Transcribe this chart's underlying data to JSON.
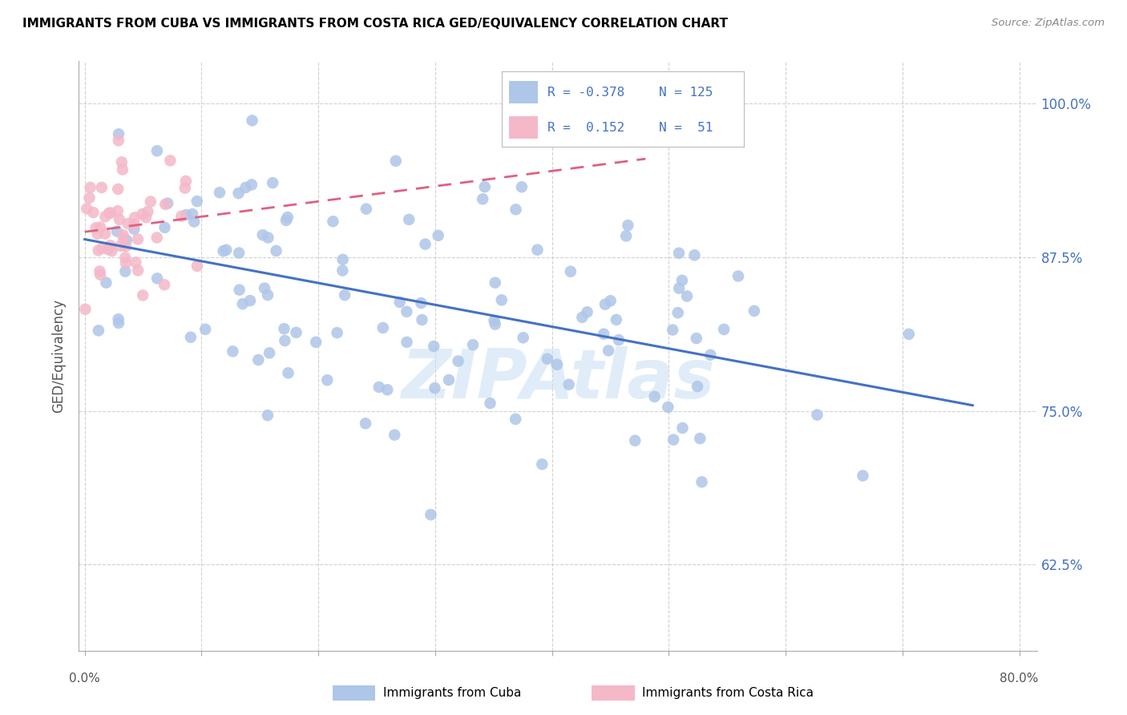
{
  "title": "IMMIGRANTS FROM CUBA VS IMMIGRANTS FROM COSTA RICA GED/EQUIVALENCY CORRELATION CHART",
  "source": "Source: ZipAtlas.com",
  "ylabel": "GED/Equivalency",
  "ytick_labels": [
    "62.5%",
    "75.0%",
    "87.5%",
    "100.0%"
  ],
  "ytick_values": [
    0.625,
    0.75,
    0.875,
    1.0
  ],
  "xlim": [
    0.0,
    0.8
  ],
  "ylim": [
    0.555,
    1.035
  ],
  "legend_r_cuba": "-0.378",
  "legend_n_cuba": "125",
  "legend_r_costarica": " 0.152",
  "legend_n_costarica": " 51",
  "cuba_color": "#aec6e8",
  "costarica_color": "#f4b8c8",
  "cuba_line_color": "#4472c4",
  "costarica_line_color": "#e06080",
  "legend_text_color": "#4472c4",
  "watermark_color": "#c8dff4",
  "grid_color": "#cccccc",
  "axis_label_color": "#555555",
  "right_axis_color": "#4472c4"
}
